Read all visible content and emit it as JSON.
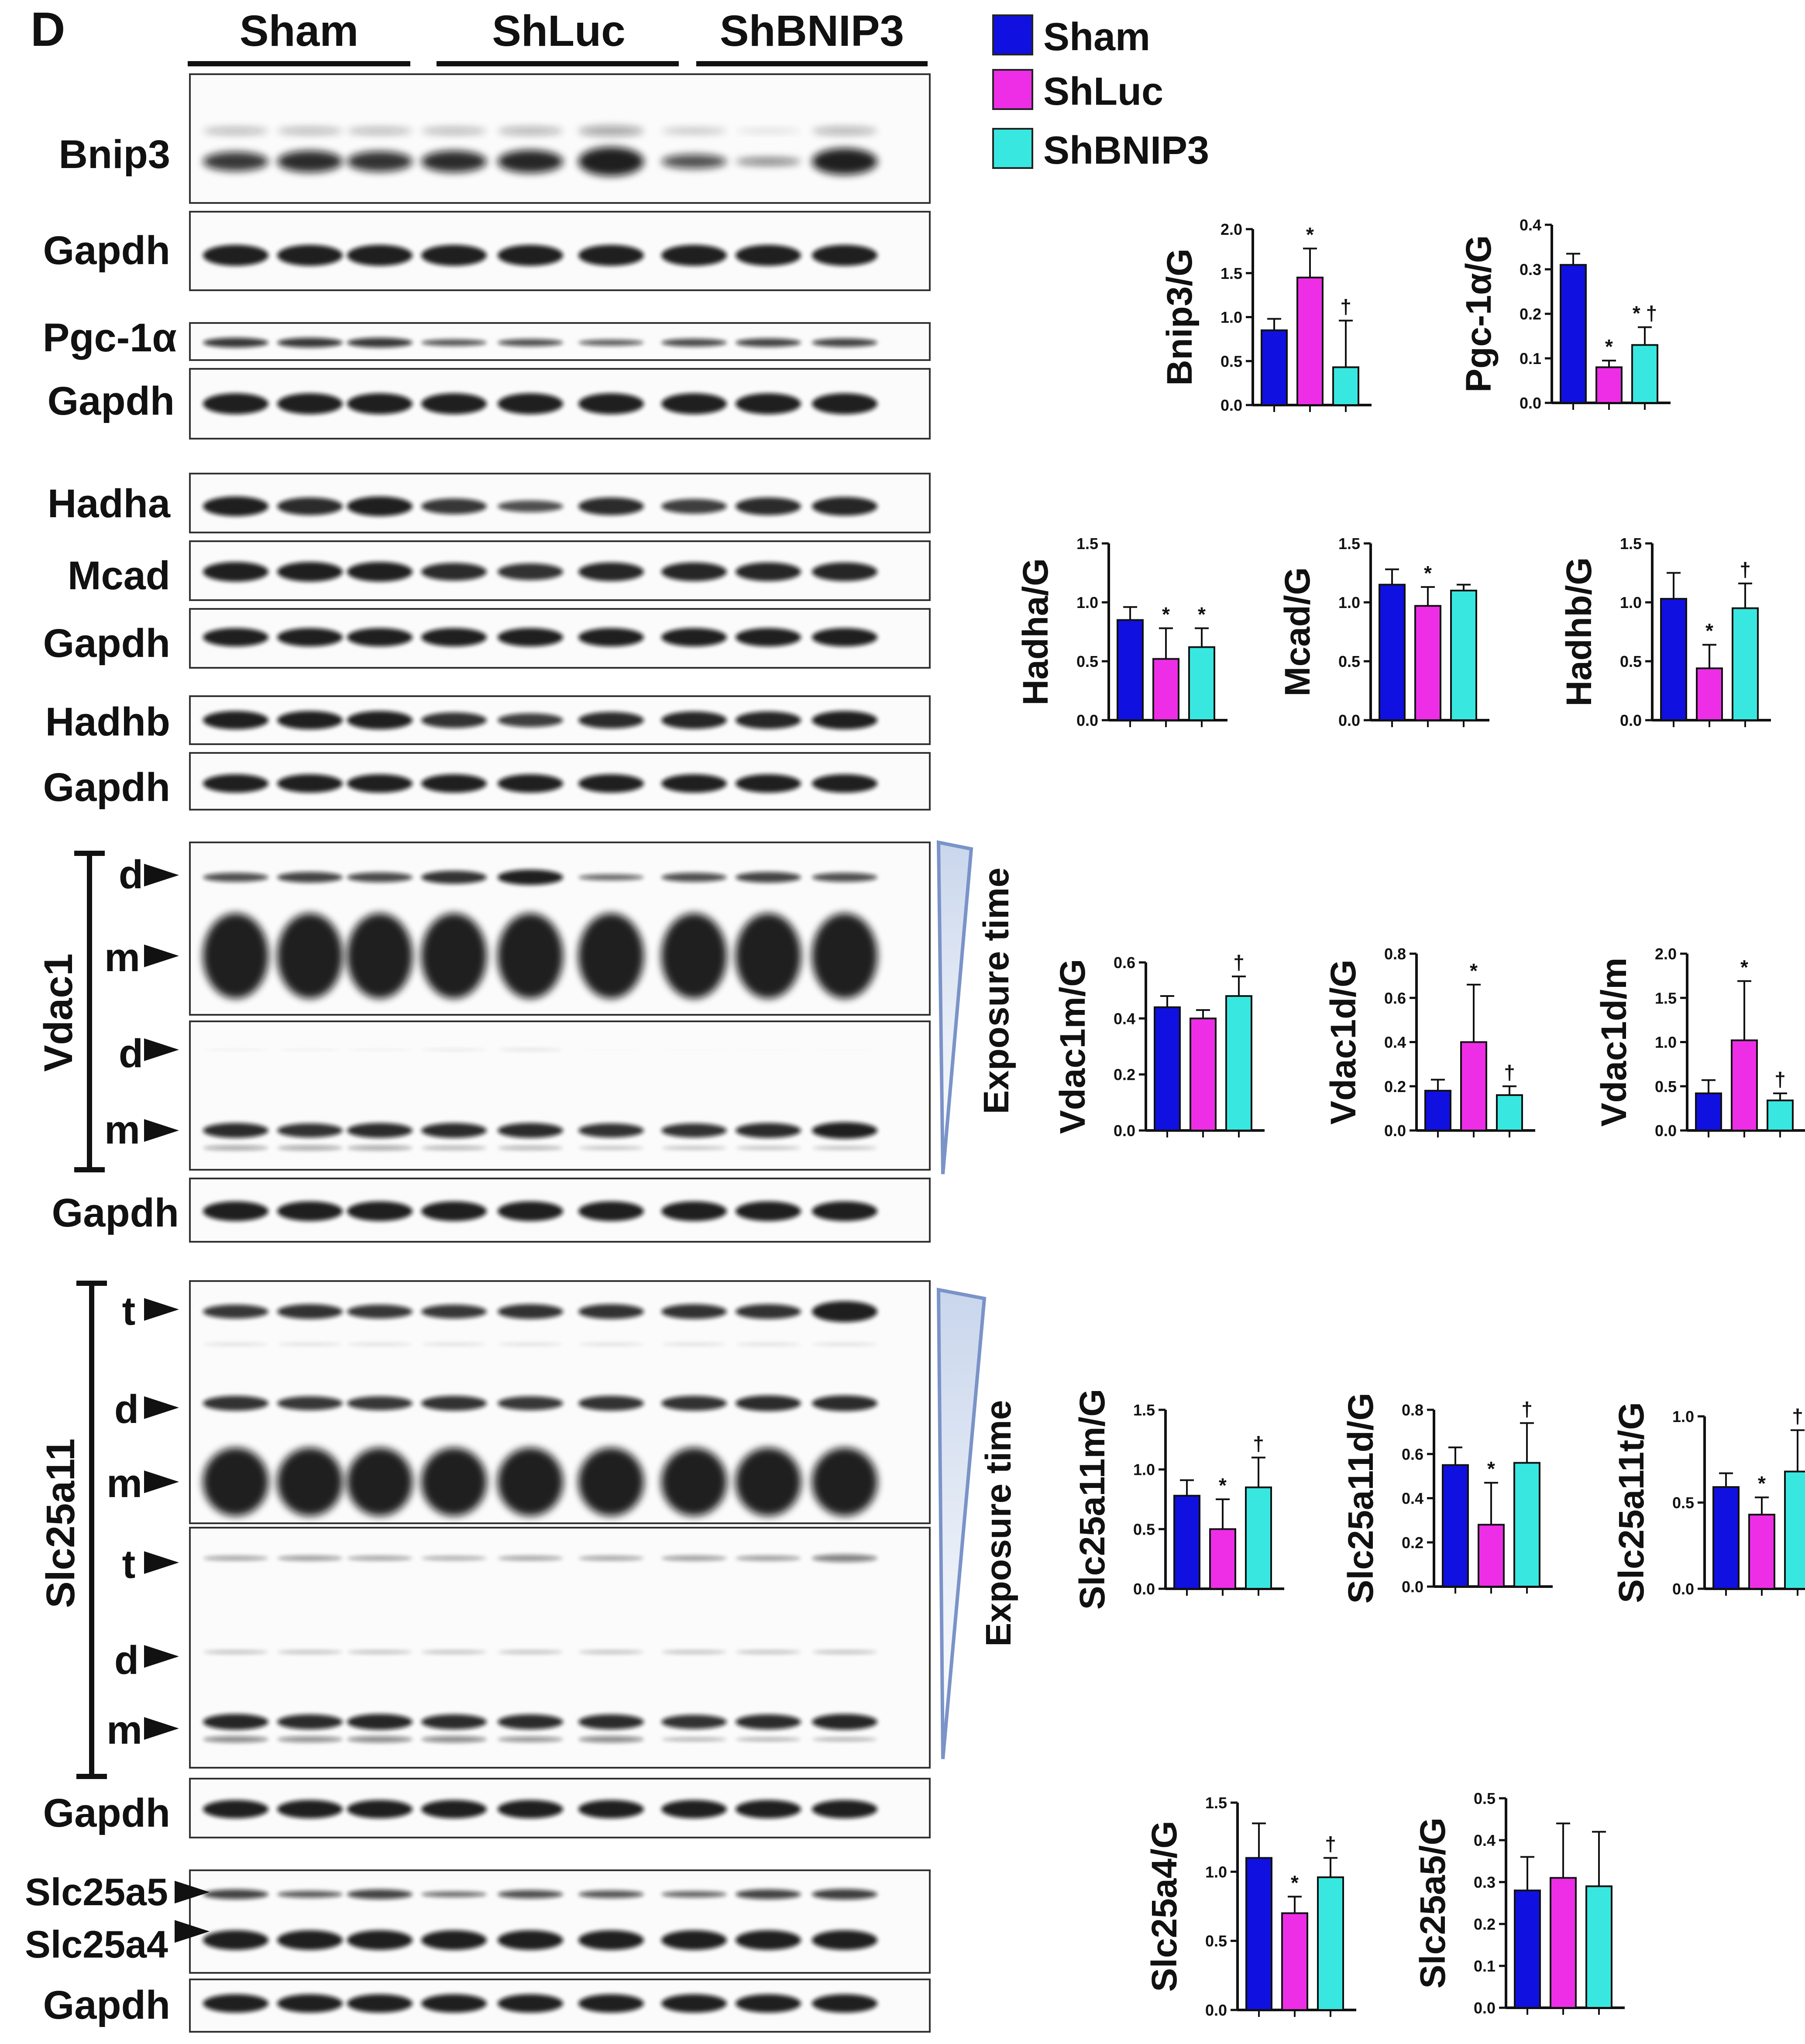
{
  "panel_letter": "D",
  "groups": [
    "Sham",
    "ShLuc",
    "ShBNIP3"
  ],
  "legend": [
    {
      "name": "Sham",
      "color": "#1010e0"
    },
    {
      "name": "ShLuc",
      "color": "#ee2ee6"
    },
    {
      "name": "ShBNIP3",
      "color": "#38e8e0"
    }
  ],
  "blot_labels": {
    "bnip3": "Bnip3",
    "gapdh": "Gapdh",
    "pgc": "Pgc-1α",
    "hadha": "Hadha",
    "mcad": "Mcad",
    "hadhb": "Hadhb",
    "vdac1": "Vdac1",
    "slc25a11": "Slc25a11",
    "slc25a5": "Slc25a5",
    "slc25a4": "Slc25a4",
    "d": "d",
    "m": "m",
    "t": "t"
  },
  "exposure_label": "Exposure time",
  "chart_data": [
    {
      "type": "bar",
      "ylabel": "Bnip3/G",
      "ylim": [
        0,
        2.0
      ],
      "yticks": [
        "0.0",
        "0.5",
        "1.0",
        "1.5",
        "2.0"
      ],
      "series": [
        {
          "name": "Sham",
          "value": 0.85,
          "error": 0.13
        },
        {
          "name": "ShLuc",
          "value": 1.45,
          "error": 0.33
        },
        {
          "name": "ShBNIP3",
          "value": 0.43,
          "error": 0.53
        }
      ],
      "marks": [
        "",
        "*",
        "†"
      ]
    },
    {
      "type": "bar",
      "ylabel": "Pgc-1α/G",
      "ylim": [
        0,
        0.4
      ],
      "yticks": [
        "0.0",
        "0.1",
        "0.2",
        "0.3",
        "0.4"
      ],
      "series": [
        {
          "name": "Sham",
          "value": 0.31,
          "error": 0.025
        },
        {
          "name": "ShLuc",
          "value": 0.08,
          "error": 0.015
        },
        {
          "name": "ShBNIP3",
          "value": 0.13,
          "error": 0.04
        }
      ],
      "marks": [
        "",
        "*",
        "* †"
      ]
    },
    {
      "type": "bar",
      "ylabel": "Hadha/G",
      "ylim": [
        0,
        1.5
      ],
      "yticks": [
        "0.0",
        "0.5",
        "1.0",
        "1.5"
      ],
      "series": [
        {
          "name": "Sham",
          "value": 0.85,
          "error": 0.11
        },
        {
          "name": "ShLuc",
          "value": 0.52,
          "error": 0.26
        },
        {
          "name": "ShBNIP3",
          "value": 0.62,
          "error": 0.16
        }
      ],
      "marks": [
        "",
        "*",
        "*"
      ]
    },
    {
      "type": "bar",
      "ylabel": "Mcad/G",
      "ylim": [
        0,
        1.5
      ],
      "yticks": [
        "0.0",
        "0.5",
        "1.0",
        "1.5"
      ],
      "series": [
        {
          "name": "Sham",
          "value": 1.15,
          "error": 0.13
        },
        {
          "name": "ShLuc",
          "value": 0.97,
          "error": 0.16
        },
        {
          "name": "ShBNIP3",
          "value": 1.1,
          "error": 0.05
        }
      ],
      "marks": [
        "",
        "*",
        ""
      ]
    },
    {
      "type": "bar",
      "ylabel": "Hadhb/G",
      "ylim": [
        0,
        1.5
      ],
      "yticks": [
        "0.0",
        "0.5",
        "1.0",
        "1.5"
      ],
      "series": [
        {
          "name": "Sham",
          "value": 1.03,
          "error": 0.22
        },
        {
          "name": "ShLuc",
          "value": 0.44,
          "error": 0.2
        },
        {
          "name": "ShBNIP3",
          "value": 0.95,
          "error": 0.21
        }
      ],
      "marks": [
        "",
        "*",
        "†"
      ]
    },
    {
      "type": "bar",
      "ylabel": "Vdac1m/G",
      "ylim": [
        0,
        0.6
      ],
      "yticks": [
        "0.0",
        "0.2",
        "0.4",
        "0.6"
      ],
      "series": [
        {
          "name": "Sham",
          "value": 0.44,
          "error": 0.04
        },
        {
          "name": "ShLuc",
          "value": 0.4,
          "error": 0.03
        },
        {
          "name": "ShBNIP3",
          "value": 0.48,
          "error": 0.07
        }
      ],
      "marks": [
        "",
        "",
        "†"
      ]
    },
    {
      "type": "bar",
      "ylabel": "Vdac1d/G",
      "ylim": [
        0,
        0.8
      ],
      "yticks": [
        "0.0",
        "0.2",
        "0.4",
        "0.6",
        "0.8"
      ],
      "series": [
        {
          "name": "Sham",
          "value": 0.18,
          "error": 0.05
        },
        {
          "name": "ShLuc",
          "value": 0.4,
          "error": 0.26
        },
        {
          "name": "ShBNIP3",
          "value": 0.16,
          "error": 0.04
        }
      ],
      "marks": [
        "",
        "*",
        "†"
      ]
    },
    {
      "type": "bar",
      "ylabel": "Vdac1d/m",
      "ylim": [
        0,
        2.0
      ],
      "yticks": [
        "0.0",
        "0.5",
        "1.0",
        "1.5",
        "2.0"
      ],
      "series": [
        {
          "name": "Sham",
          "value": 0.42,
          "error": 0.15
        },
        {
          "name": "ShLuc",
          "value": 1.02,
          "error": 0.67
        },
        {
          "name": "ShBNIP3",
          "value": 0.34,
          "error": 0.08
        }
      ],
      "marks": [
        "",
        "*",
        "†"
      ]
    },
    {
      "type": "bar",
      "ylabel": "Slc25a11m/G",
      "ylim": [
        0,
        1.5
      ],
      "yticks": [
        "0.0",
        "0.5",
        "1.0",
        "1.5"
      ],
      "series": [
        {
          "name": "Sham",
          "value": 0.78,
          "error": 0.13
        },
        {
          "name": "ShLuc",
          "value": 0.5,
          "error": 0.25
        },
        {
          "name": "ShBNIP3",
          "value": 0.85,
          "error": 0.25
        }
      ],
      "marks": [
        "",
        "*",
        "†"
      ]
    },
    {
      "type": "bar",
      "ylabel": "Slc25a11d/G",
      "ylim": [
        0,
        0.8
      ],
      "yticks": [
        "0.0",
        "0.2",
        "0.4",
        "0.6",
        "0.8"
      ],
      "series": [
        {
          "name": "Sham",
          "value": 0.55,
          "error": 0.08
        },
        {
          "name": "ShLuc",
          "value": 0.28,
          "error": 0.19
        },
        {
          "name": "ShBNIP3",
          "value": 0.56,
          "error": 0.18
        }
      ],
      "marks": [
        "",
        "*",
        "†"
      ]
    },
    {
      "type": "bar",
      "ylabel": "Slc25a11t/G",
      "ylim": [
        0,
        1.0
      ],
      "yticks": [
        "0.0",
        "0.5",
        "1.0"
      ],
      "series": [
        {
          "name": "Sham",
          "value": 0.59,
          "error": 0.08
        },
        {
          "name": "ShLuc",
          "value": 0.43,
          "error": 0.1
        },
        {
          "name": "ShBNIP3",
          "value": 0.68,
          "error": 0.24
        }
      ],
      "marks": [
        "",
        "*",
        "†"
      ]
    },
    {
      "type": "bar",
      "ylabel": "Slc25a4/G",
      "ylim": [
        0,
        1.5
      ],
      "yticks": [
        "0.0",
        "0.5",
        "1.0",
        "1.5"
      ],
      "series": [
        {
          "name": "Sham",
          "value": 1.1,
          "error": 0.25
        },
        {
          "name": "ShLuc",
          "value": 0.7,
          "error": 0.12
        },
        {
          "name": "ShBNIP3",
          "value": 0.96,
          "error": 0.14
        }
      ],
      "marks": [
        "",
        "*",
        "†"
      ]
    },
    {
      "type": "bar",
      "ylabel": "Slc25a5/G",
      "ylim": [
        0,
        0.5
      ],
      "yticks": [
        "0.0",
        "0.1",
        "0.2",
        "0.3",
        "0.4",
        "0.5"
      ],
      "series": [
        {
          "name": "Sham",
          "value": 0.28,
          "error": 0.08
        },
        {
          "name": "ShLuc",
          "value": 0.31,
          "error": 0.13
        },
        {
          "name": "ShBNIP3",
          "value": 0.29,
          "error": 0.13
        }
      ],
      "marks": [
        "",
        "",
        ""
      ]
    }
  ]
}
